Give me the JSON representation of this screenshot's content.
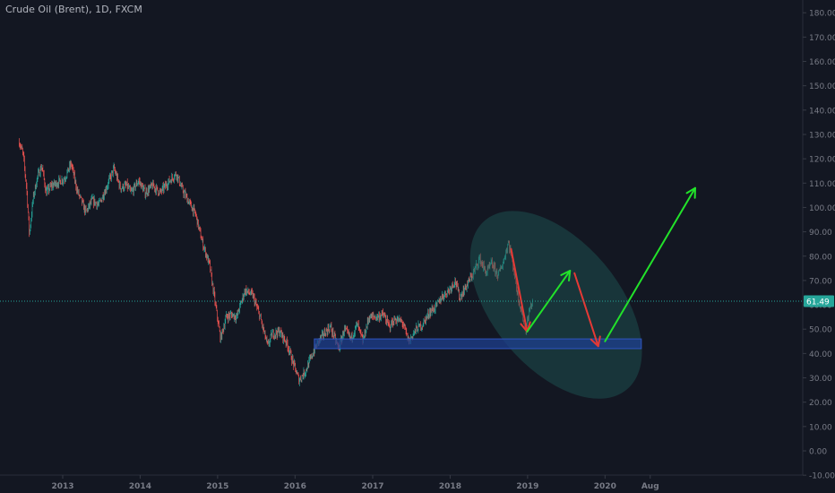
{
  "header": {
    "title": "Crude Oil (Brent), 1D, FXCM"
  },
  "colors": {
    "background": "#131722",
    "up_candle": "#26a69a",
    "down_candle": "#ef5350",
    "axis_text": "#787b86",
    "price_line": "#26a69a",
    "zone_fill": "#1e3f8f",
    "ellipse_fill": "#1f5c58",
    "arrow_green": "#22e22a",
    "arrow_red": "#e53935"
  },
  "chart_data": {
    "type": "candlestick",
    "title": "Crude Oil (Brent), 1D, FXCM",
    "y_axis": {
      "ticks": [
        "180.00",
        "170.00",
        "160.00",
        "150.00",
        "140.00",
        "130.00",
        "120.00",
        "110.00",
        "100.00",
        "90.00",
        "80.00",
        "70.00",
        "60.00",
        "50.00",
        "40.00",
        "30.00",
        "20.00",
        "10.00",
        "0.00",
        "-10.00"
      ],
      "range": [
        -13,
        186
      ]
    },
    "x_axis": {
      "ticks": [
        "2013",
        "2014",
        "2015",
        "2016",
        "2017",
        "2018",
        "2019",
        "2020",
        "Aug"
      ],
      "range": [
        "2012-06",
        "2022-01"
      ]
    },
    "last_price": "61.49",
    "price_path": [
      [
        "2012-06-10",
        127
      ],
      [
        "2012-06-28",
        122
      ],
      [
        "2012-07-15",
        108
      ],
      [
        "2012-07-28",
        89
      ],
      [
        "2012-08-15",
        104
      ],
      [
        "2012-09-05",
        113
      ],
      [
        "2012-09-25",
        117
      ],
      [
        "2012-10-15",
        106
      ],
      [
        "2012-11-10",
        109
      ],
      [
        "2012-12-05",
        110
      ],
      [
        "2013-01-10",
        112
      ],
      [
        "2013-02-10",
        118
      ],
      [
        "2013-03-10",
        107
      ],
      [
        "2013-04-20",
        98
      ],
      [
        "2013-05-20",
        103
      ],
      [
        "2013-06-20",
        101
      ],
      [
        "2013-07-25",
        108
      ],
      [
        "2013-08-30",
        116
      ],
      [
        "2013-09-30",
        108
      ],
      [
        "2013-10-30",
        109
      ],
      [
        "2013-11-20",
        106
      ],
      [
        "2013-12-25",
        111
      ],
      [
        "2014-01-25",
        106
      ],
      [
        "2014-03-01",
        109
      ],
      [
        "2014-04-05",
        106
      ],
      [
        "2014-05-10",
        110
      ],
      [
        "2014-06-20",
        114
      ],
      [
        "2014-07-20",
        107
      ],
      [
        "2014-08-20",
        102
      ],
      [
        "2014-09-20",
        97
      ],
      [
        "2014-10-20",
        86
      ],
      [
        "2014-11-25",
        76
      ],
      [
        "2014-12-20",
        61
      ],
      [
        "2015-01-15",
        46
      ],
      [
        "2015-02-10",
        55
      ],
      [
        "2015-03-10",
        56
      ],
      [
        "2015-04-01",
        55
      ],
      [
        "2015-05-10",
        66
      ],
      [
        "2015-06-15",
        64
      ],
      [
        "2015-07-20",
        55
      ],
      [
        "2015-08-25",
        43
      ],
      [
        "2015-09-15",
        48
      ],
      [
        "2015-10-20",
        49
      ],
      [
        "2015-11-25",
        44
      ],
      [
        "2015-12-20",
        37
      ],
      [
        "2016-01-20",
        29
      ],
      [
        "2016-02-20",
        33
      ],
      [
        "2016-03-25",
        40
      ],
      [
        "2016-04-20",
        45
      ],
      [
        "2016-05-25",
        49
      ],
      [
        "2016-06-15",
        51
      ],
      [
        "2016-07-25",
        42
      ],
      [
        "2016-08-20",
        50
      ],
      [
        "2016-09-20",
        46
      ],
      [
        "2016-10-20",
        52
      ],
      [
        "2016-11-15",
        45
      ],
      [
        "2016-12-15",
        55
      ],
      [
        "2017-01-20",
        55
      ],
      [
        "2017-02-20",
        56
      ],
      [
        "2017-03-20",
        51
      ],
      [
        "2017-04-15",
        54
      ],
      [
        "2017-05-20",
        53
      ],
      [
        "2017-06-20",
        45
      ],
      [
        "2017-07-25",
        50
      ],
      [
        "2017-08-25",
        52
      ],
      [
        "2017-09-25",
        57
      ],
      [
        "2017-10-25",
        59
      ],
      [
        "2017-11-20",
        63
      ],
      [
        "2017-12-25",
        66
      ],
      [
        "2018-01-25",
        70
      ],
      [
        "2018-02-15",
        63
      ],
      [
        "2018-03-20",
        68
      ],
      [
        "2018-04-20",
        73
      ],
      [
        "2018-05-20",
        79
      ],
      [
        "2018-06-20",
        73
      ],
      [
        "2018-07-15",
        77
      ],
      [
        "2018-08-15",
        72
      ],
      [
        "2018-09-10",
        78
      ],
      [
        "2018-10-03",
        86
      ],
      [
        "2018-10-25",
        76
      ],
      [
        "2018-11-20",
        62
      ],
      [
        "2018-12-24",
        50
      ],
      [
        "2019-01-10",
        58
      ],
      [
        "2019-01-25",
        61.49
      ]
    ],
    "annotations": {
      "support_zone": {
        "from": "2016-04-01",
        "to": "2020-06-20",
        "low": 42,
        "high": 46
      },
      "ellipse": {
        "center": [
          "2019-05-15",
          60
        ],
        "semi_axes_days_price": [
          520,
          26
        ],
        "tilt_deg": 50
      },
      "arrows": [
        {
          "color": "red",
          "from": [
            "2018-10-15",
            83
          ],
          "to": [
            "2018-12-30",
            49
          ]
        },
        {
          "color": "green",
          "from": [
            "2018-12-30",
            49
          ],
          "to": [
            "2019-07-20",
            74
          ]
        },
        {
          "color": "red",
          "from": [
            "2019-08-10",
            73
          ],
          "to": [
            "2019-11-30",
            43
          ]
        },
        {
          "color": "green",
          "from": [
            "2020-01-01",
            45
          ],
          "to": [
            "2021-03-01",
            108
          ]
        }
      ]
    }
  }
}
